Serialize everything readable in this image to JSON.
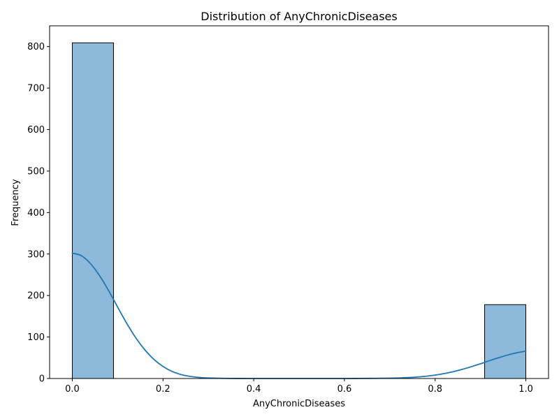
{
  "chart_data": {
    "type": "bar",
    "title": "Distribution of AnyChronicDiseases",
    "xlabel": "AnyChronicDiseases",
    "ylabel": "Frequency",
    "xlim": [
      -0.05,
      1.05
    ],
    "ylim": [
      0,
      850
    ],
    "xticks": [
      0.0,
      0.2,
      0.4,
      0.6,
      0.8,
      1.0
    ],
    "xtick_labels": [
      "0.0",
      "0.2",
      "0.4",
      "0.6",
      "0.8",
      "1.0"
    ],
    "yticks": [
      0,
      100,
      200,
      300,
      400,
      500,
      600,
      700,
      800
    ],
    "ytick_labels": [
      "0",
      "100",
      "200",
      "300",
      "400",
      "500",
      "600",
      "700",
      "800"
    ],
    "bins": [
      {
        "x0": 0.0,
        "x1": 0.0909,
        "value": 809
      },
      {
        "x0": 0.9091,
        "x1": 1.0,
        "value": 178
      }
    ],
    "kde": {
      "name": "KDE",
      "x": [
        0.0,
        0.02,
        0.04,
        0.06,
        0.08,
        0.1,
        0.12,
        0.14,
        0.16,
        0.18,
        0.2,
        0.22,
        0.24,
        0.26,
        0.28,
        0.3,
        0.35,
        0.4,
        0.5,
        0.6,
        0.65,
        0.7,
        0.72,
        0.74,
        0.76,
        0.78,
        0.8,
        0.82,
        0.84,
        0.86,
        0.88,
        0.9,
        0.92,
        0.94,
        0.96,
        0.98,
        1.0
      ],
      "y": [
        302,
        296,
        277,
        248,
        212,
        172,
        133,
        98,
        69,
        46,
        29,
        17,
        9.5,
        5,
        2.5,
        1.2,
        0.2,
        0,
        0,
        0,
        0.3,
        0.8,
        1.3,
        2.2,
        3.6,
        5.5,
        8.2,
        12,
        16.5,
        22,
        28.5,
        35.5,
        43,
        50,
        56.5,
        62,
        66
      ]
    },
    "colors": {
      "bar_fill": "#8db9da",
      "bar_edge": "#000000",
      "kde_line": "#1f77b4"
    },
    "grid": false,
    "legend": "none"
  }
}
